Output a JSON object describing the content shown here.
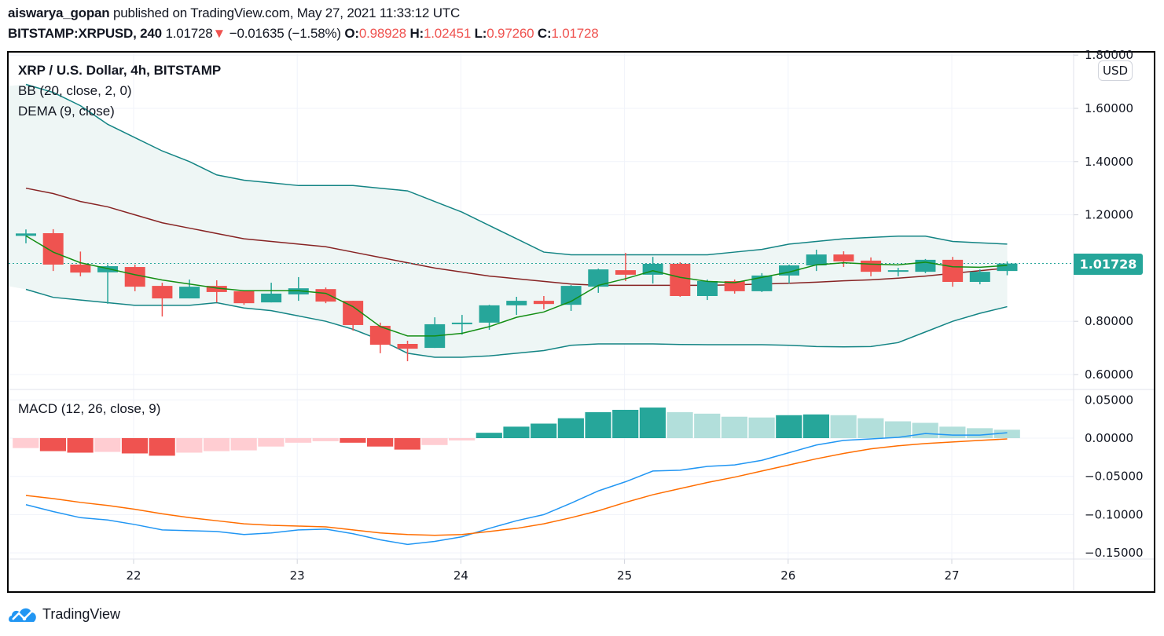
{
  "header": {
    "author": "aiswarya_gopan",
    "published_text": "published on TradingView.com, May 27, 2021 11:33:12 UTC",
    "symbol": "BITSTAMP:XRPUSD, 240",
    "last_price": "1.01728",
    "change_arrow": "▼",
    "change": "−0.01635 (−1.58%)",
    "o_label": "O:",
    "o_value": "0.98928",
    "h_label": "H:",
    "h_value": "1.02451",
    "l_label": "L:",
    "l_value": "0.97260",
    "c_label": "C:",
    "c_value": "1.01728"
  },
  "legend": {
    "title": "XRP / U.S. Dollar, 4h, BITSTAMP",
    "bb": "BB (20, close, 2, 0)",
    "dema": "DEMA (9, close)",
    "macd": "MACD (12, 26, close, 9)"
  },
  "currency_button": "USD",
  "price_tag": "1.01728",
  "footer": {
    "brand": "TradingView"
  },
  "colors": {
    "up": "#26a69a",
    "down": "#ef5350",
    "bb_band": "#138484",
    "bb_basis": "#872323",
    "bb_fill": "#eef6f5",
    "dema": "#138e13",
    "macd": "#2196f3",
    "signal": "#ff6d00",
    "hist_up_strong": "#26a69a",
    "hist_up_weak": "#b2dfdb",
    "hist_down_strong": "#ef5350",
    "hist_down_weak": "#ffcdd2"
  },
  "chart_data": [
    {
      "type": "candlestick",
      "title": "XRP / U.S. Dollar, 4h, BITSTAMP",
      "ylim": [
        0.55,
        1.82
      ],
      "y_ticks": [
        "1.80000",
        "1.60000",
        "1.40000",
        "1.20000",
        "0.80000",
        "0.60000"
      ],
      "y_tick_values": [
        1.8,
        1.6,
        1.4,
        1.2,
        0.8,
        0.6
      ],
      "x_ticks": [
        "22",
        "23",
        "24",
        "25",
        "26",
        "27"
      ],
      "x_tick_index": [
        4,
        10,
        16,
        22,
        28,
        34
      ],
      "ohlc": [
        [
          1.121,
          1.145,
          1.093,
          1.13
        ],
        [
          1.131,
          1.146,
          0.989,
          1.013
        ],
        [
          1.013,
          1.062,
          0.969,
          0.983
        ],
        [
          0.984,
          1.013,
          0.866,
          1.007
        ],
        [
          1.004,
          1.013,
          0.913,
          0.93
        ],
        [
          0.933,
          0.945,
          0.818,
          0.886
        ],
        [
          0.886,
          0.957,
          0.886,
          0.93
        ],
        [
          0.933,
          0.954,
          0.871,
          0.91
        ],
        [
          0.913,
          0.916,
          0.862,
          0.868
        ],
        [
          0.871,
          0.945,
          0.871,
          0.904
        ],
        [
          0.901,
          0.966,
          0.877,
          0.924
        ],
        [
          0.921,
          0.927,
          0.868,
          0.874
        ],
        [
          0.877,
          0.877,
          0.765,
          0.786
        ],
        [
          0.783,
          0.795,
          0.68,
          0.712
        ],
        [
          0.715,
          0.727,
          0.65,
          0.697
        ],
        [
          0.7,
          0.815,
          0.7,
          0.789
        ],
        [
          0.789,
          0.824,
          0.75,
          0.795
        ],
        [
          0.795,
          0.862,
          0.768,
          0.86
        ],
        [
          0.86,
          0.892,
          0.824,
          0.877
        ],
        [
          0.877,
          0.895,
          0.845,
          0.865
        ],
        [
          0.862,
          0.936,
          0.839,
          0.933
        ],
        [
          0.93,
          0.998,
          0.907,
          0.995
        ],
        [
          0.992,
          1.057,
          0.951,
          0.975
        ],
        [
          0.975,
          1.042,
          0.942,
          1.016
        ],
        [
          1.016,
          1.022,
          0.892,
          0.895
        ],
        [
          0.895,
          0.957,
          0.88,
          0.951
        ],
        [
          0.951,
          0.957,
          0.904,
          0.913
        ],
        [
          0.913,
          0.981,
          0.91,
          0.972
        ],
        [
          0.972,
          1.013,
          0.942,
          1.01
        ],
        [
          1.01,
          1.069,
          0.989,
          1.051
        ],
        [
          1.051,
          1.063,
          1.004,
          1.025
        ],
        [
          1.028,
          1.04,
          0.969,
          0.986
        ],
        [
          0.986,
          1.001,
          0.969,
          0.992
        ],
        [
          0.986,
          1.034,
          0.981,
          1.031
        ],
        [
          1.031,
          1.042,
          0.93,
          0.948
        ],
        [
          0.948,
          0.995,
          0.939,
          0.986
        ],
        [
          0.989,
          1.025,
          0.973,
          1.017
        ]
      ],
      "bb_upper": [
        1.69,
        1.66,
        1.61,
        1.54,
        1.49,
        1.44,
        1.4,
        1.35,
        1.33,
        1.32,
        1.31,
        1.31,
        1.31,
        1.3,
        1.29,
        1.25,
        1.21,
        1.16,
        1.11,
        1.06,
        1.05,
        1.05,
        1.05,
        1.05,
        1.05,
        1.05,
        1.06,
        1.07,
        1.09,
        1.1,
        1.11,
        1.115,
        1.12,
        1.12,
        1.1,
        1.095,
        1.09
      ],
      "bb_basis": [
        1.3,
        1.28,
        1.25,
        1.23,
        1.2,
        1.17,
        1.15,
        1.13,
        1.11,
        1.1,
        1.09,
        1.08,
        1.06,
        1.04,
        1.02,
        1.0,
        0.985,
        0.97,
        0.96,
        0.95,
        0.94,
        0.935,
        0.935,
        0.935,
        0.935,
        0.935,
        0.937,
        0.94,
        0.943,
        0.947,
        0.952,
        0.956,
        0.962,
        0.97,
        0.98,
        0.99,
        1.0
      ],
      "bb_lower": [
        0.92,
        0.89,
        0.88,
        0.87,
        0.86,
        0.86,
        0.86,
        0.87,
        0.85,
        0.84,
        0.82,
        0.8,
        0.77,
        0.73,
        0.68,
        0.665,
        0.665,
        0.67,
        0.68,
        0.69,
        0.71,
        0.715,
        0.715,
        0.715,
        0.713,
        0.712,
        0.712,
        0.712,
        0.71,
        0.705,
        0.704,
        0.705,
        0.72,
        0.76,
        0.8,
        0.83,
        0.855
      ],
      "dema": [
        1.121,
        1.06,
        1.02,
        0.998,
        0.975,
        0.955,
        0.94,
        0.925,
        0.915,
        0.915,
        0.915,
        0.905,
        0.855,
        0.78,
        0.745,
        0.745,
        0.755,
        0.78,
        0.815,
        0.835,
        0.875,
        0.935,
        0.96,
        0.99,
        0.965,
        0.95,
        0.945,
        0.965,
        0.985,
        1.012,
        1.02,
        1.015,
        1.012,
        1.022,
        1.005,
        1.003,
        1.01
      ],
      "last_price": 1.01728
    },
    {
      "type": "bar+line",
      "title": "MACD (12, 26, close, 9)",
      "ylim": [
        -0.165,
        0.065
      ],
      "y_ticks": [
        "0.05000",
        "0.00000",
        "−0.05000",
        "−0.10000",
        "−0.15000"
      ],
      "y_tick_values": [
        0.05,
        0.0,
        -0.05,
        -0.1,
        -0.15
      ],
      "histogram": [
        -0.013,
        -0.017,
        -0.019,
        -0.018,
        -0.02,
        -0.023,
        -0.019,
        -0.017,
        -0.016,
        -0.011,
        -0.006,
        -0.004,
        -0.006,
        -0.011,
        -0.015,
        -0.009,
        -0.003,
        0.007,
        0.015,
        0.019,
        0.026,
        0.034,
        0.037,
        0.04,
        0.034,
        0.032,
        0.028,
        0.027,
        0.03,
        0.031,
        0.03,
        0.026,
        0.022,
        0.02,
        0.015,
        0.013,
        0.011
      ],
      "hist_style": [
        "weak",
        "strong",
        "strong",
        "weak",
        "strong",
        "strong",
        "weak",
        "weak",
        "weak",
        "weak",
        "weak",
        "weak",
        "strong",
        "strong",
        "strong",
        "weak",
        "weak",
        "strong",
        "strong",
        "strong",
        "strong",
        "strong",
        "strong",
        "strong",
        "weak",
        "weak",
        "weak",
        "weak",
        "strong",
        "strong",
        "weak",
        "weak",
        "weak",
        "weak",
        "weak",
        "weak",
        "weak"
      ],
      "macd": [
        -0.087,
        -0.096,
        -0.104,
        -0.107,
        -0.113,
        -0.12,
        -0.121,
        -0.122,
        -0.126,
        -0.124,
        -0.12,
        -0.119,
        -0.125,
        -0.133,
        -0.139,
        -0.135,
        -0.129,
        -0.118,
        -0.108,
        -0.1,
        -0.085,
        -0.069,
        -0.057,
        -0.043,
        -0.042,
        -0.037,
        -0.035,
        -0.029,
        -0.019,
        -0.009,
        -0.003,
        -0.001,
        0.001,
        0.006,
        0.004,
        0.004,
        0.007
      ],
      "signal": [
        -0.075,
        -0.079,
        -0.084,
        -0.088,
        -0.093,
        -0.099,
        -0.104,
        -0.108,
        -0.112,
        -0.114,
        -0.115,
        -0.116,
        -0.12,
        -0.124,
        -0.126,
        -0.127,
        -0.126,
        -0.122,
        -0.118,
        -0.112,
        -0.104,
        -0.095,
        -0.084,
        -0.074,
        -0.066,
        -0.058,
        -0.051,
        -0.043,
        -0.035,
        -0.027,
        -0.02,
        -0.014,
        -0.01,
        -0.007,
        -0.005,
        -0.003,
        -0.001
      ]
    }
  ]
}
